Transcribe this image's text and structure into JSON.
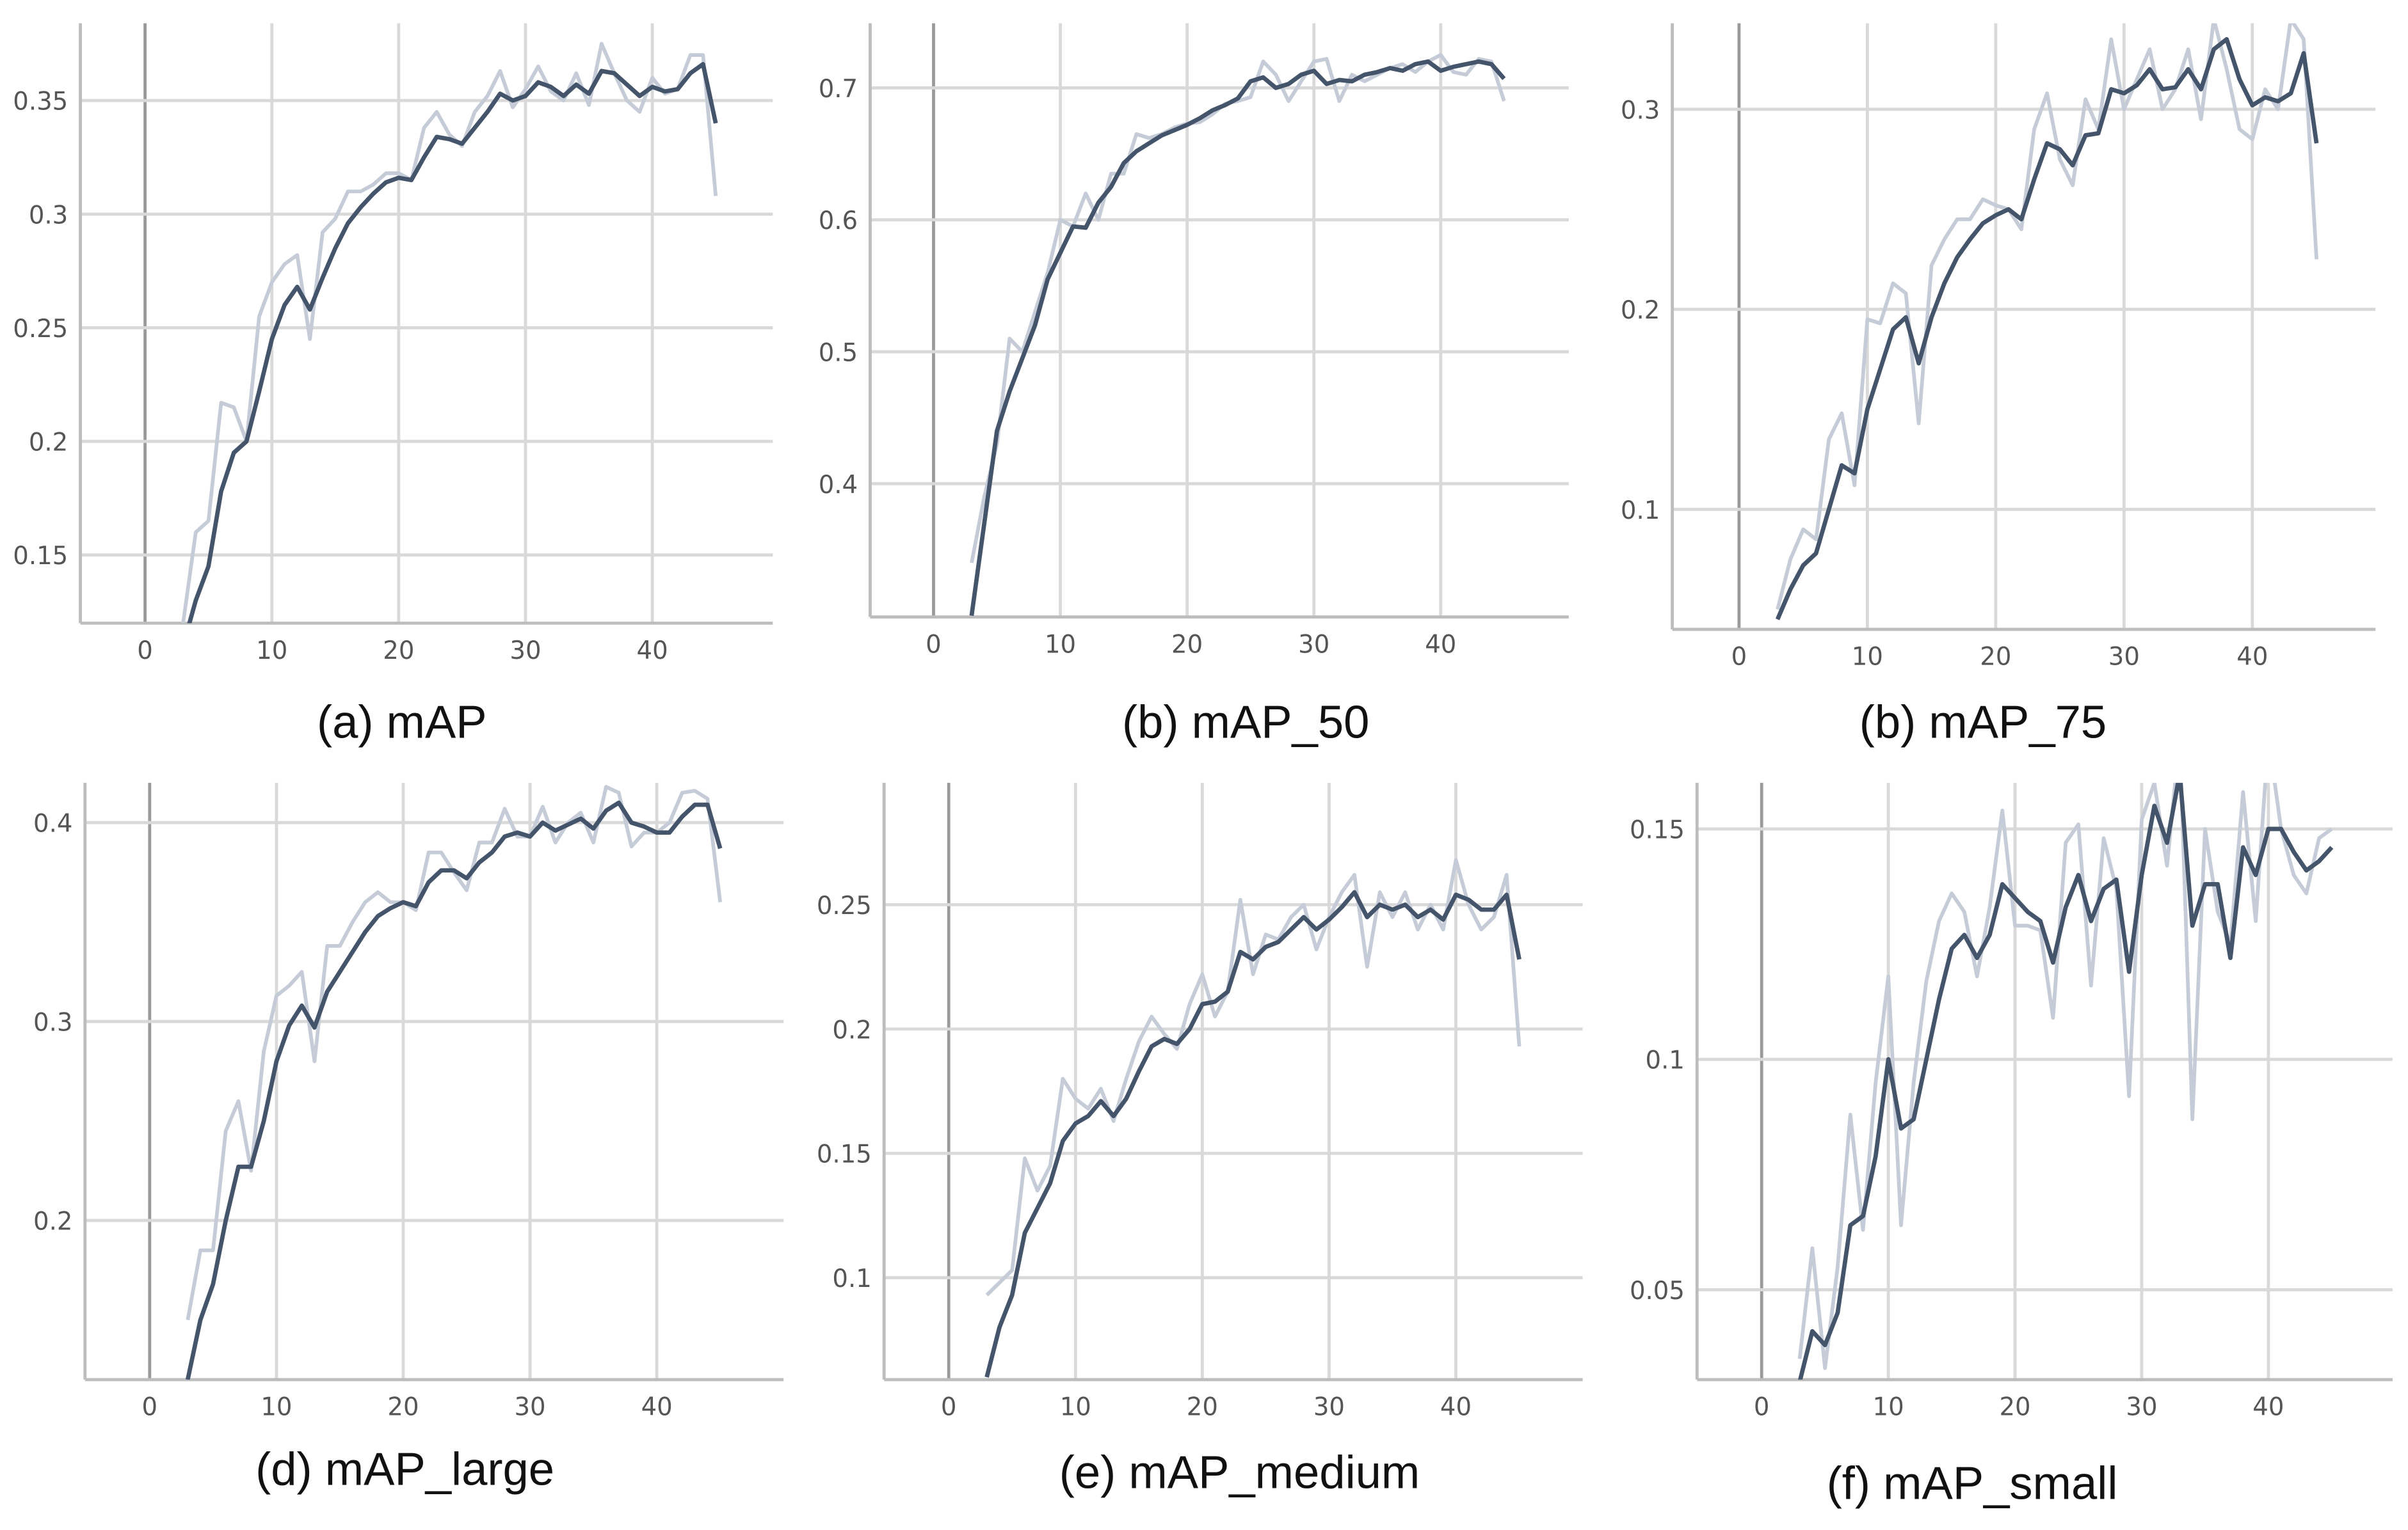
{
  "chart_data": [
    {
      "type": "line",
      "caption": "(a) mAP",
      "xlim": [
        -5.1,
        49.5
      ],
      "ylim": [
        0.12,
        0.384
      ],
      "xticks": [
        0,
        10,
        20,
        30,
        40
      ],
      "yticks": [
        0.15,
        0.2,
        0.25,
        0.3,
        0.35
      ],
      "grid": true,
      "x": [
        3,
        4,
        5,
        6,
        7,
        8,
        9,
        10,
        11,
        12,
        13,
        14,
        15,
        16,
        17,
        18,
        19,
        20,
        21,
        22,
        23,
        24,
        25,
        26,
        27,
        28,
        29,
        30,
        31,
        32,
        33,
        34,
        35,
        36,
        37,
        38,
        39,
        40,
        41,
        42,
        43,
        44,
        45
      ],
      "series": [
        {
          "color": "#c5ccd8",
          "values": [
            0.12,
            0.16,
            0.165,
            0.217,
            0.215,
            0.2,
            0.255,
            0.27,
            0.278,
            0.282,
            0.245,
            0.292,
            0.298,
            0.31,
            0.31,
            0.313,
            0.318,
            0.318,
            0.315,
            0.338,
            0.345,
            0.335,
            0.33,
            0.345,
            0.352,
            0.363,
            0.347,
            0.355,
            0.365,
            0.354,
            0.35,
            0.362,
            0.348,
            0.375,
            0.362,
            0.35,
            0.345,
            0.36,
            0.353,
            0.355,
            0.37,
            0.37,
            0.308
          ]
        },
        {
          "color": "#44546a",
          "values": [
            0.11,
            0.13,
            0.145,
            0.178,
            0.195,
            0.2,
            0.222,
            0.245,
            0.26,
            0.268,
            0.258,
            0.272,
            0.285,
            0.296,
            0.303,
            0.309,
            0.314,
            0.316,
            0.315,
            0.325,
            0.334,
            0.333,
            0.331,
            0.338,
            0.345,
            0.353,
            0.35,
            0.352,
            0.358,
            0.356,
            0.352,
            0.357,
            0.353,
            0.363,
            0.362,
            0.357,
            0.352,
            0.356,
            0.354,
            0.355,
            0.362,
            0.366,
            0.34
          ]
        }
      ]
    },
    {
      "type": "line",
      "caption": "(b) mAP_50",
      "xlim": [
        -5,
        50.1
      ],
      "ylim": [
        0.299,
        0.749
      ],
      "xticks": [
        0,
        10,
        20,
        30,
        40
      ],
      "yticks": [
        0.4,
        0.5,
        0.6,
        0.7
      ],
      "grid": true,
      "x": [
        3,
        4,
        5,
        6,
        7,
        8,
        9,
        10,
        11,
        12,
        13,
        14,
        15,
        16,
        17,
        18,
        19,
        20,
        21,
        22,
        23,
        24,
        25,
        26,
        27,
        28,
        29,
        30,
        31,
        32,
        33,
        34,
        35,
        36,
        37,
        38,
        39,
        40,
        41,
        42,
        43,
        44,
        45
      ],
      "series": [
        {
          "color": "#c5ccd8",
          "values": [
            0.34,
            0.39,
            0.43,
            0.51,
            0.5,
            0.53,
            0.56,
            0.6,
            0.595,
            0.62,
            0.6,
            0.635,
            0.635,
            0.665,
            0.662,
            0.665,
            0.67,
            0.673,
            0.674,
            0.68,
            0.688,
            0.69,
            0.693,
            0.72,
            0.71,
            0.69,
            0.705,
            0.72,
            0.722,
            0.69,
            0.71,
            0.705,
            0.71,
            0.715,
            0.718,
            0.712,
            0.72,
            0.725,
            0.712,
            0.71,
            0.722,
            0.72,
            0.69
          ]
        },
        {
          "color": "#44546a",
          "values": [
            0.3,
            0.37,
            0.44,
            0.47,
            0.495,
            0.52,
            0.555,
            0.575,
            0.595,
            0.594,
            0.613,
            0.625,
            0.643,
            0.652,
            0.658,
            0.664,
            0.668,
            0.672,
            0.677,
            0.683,
            0.687,
            0.692,
            0.705,
            0.708,
            0.7,
            0.703,
            0.71,
            0.713,
            0.703,
            0.706,
            0.705,
            0.71,
            0.712,
            0.715,
            0.713,
            0.718,
            0.72,
            0.713,
            0.716,
            0.718,
            0.72,
            0.718,
            0.707
          ]
        }
      ]
    },
    {
      "type": "line",
      "caption": "(b) mAP_75",
      "xlim": [
        -5.2,
        49.6
      ],
      "ylim": [
        0.04,
        0.343
      ],
      "xticks": [
        0,
        10,
        20,
        30,
        40
      ],
      "yticks": [
        0.1,
        0.2,
        0.3
      ],
      "grid": true,
      "x": [
        3,
        4,
        5,
        6,
        7,
        8,
        9,
        10,
        11,
        12,
        13,
        14,
        15,
        16,
        17,
        18,
        19,
        20,
        21,
        22,
        23,
        24,
        25,
        26,
        27,
        28,
        29,
        30,
        31,
        32,
        33,
        34,
        35,
        36,
        37,
        38,
        39,
        40,
        41,
        42,
        43,
        44,
        45
      ],
      "series": [
        {
          "color": "#c5ccd8",
          "values": [
            0.05,
            0.075,
            0.09,
            0.085,
            0.135,
            0.148,
            0.112,
            0.195,
            0.193,
            0.213,
            0.208,
            0.143,
            0.222,
            0.235,
            0.245,
            0.245,
            0.255,
            0.252,
            0.25,
            0.24,
            0.29,
            0.308,
            0.275,
            0.262,
            0.305,
            0.29,
            0.335,
            0.3,
            0.315,
            0.33,
            0.3,
            0.31,
            0.33,
            0.295,
            0.345,
            0.32,
            0.29,
            0.285,
            0.31,
            0.3,
            0.345,
            0.335,
            0.225
          ]
        },
        {
          "color": "#44546a",
          "values": [
            0.045,
            0.06,
            0.072,
            0.078,
            0.1,
            0.122,
            0.118,
            0.15,
            0.17,
            0.19,
            0.196,
            0.173,
            0.196,
            0.213,
            0.226,
            0.235,
            0.243,
            0.247,
            0.25,
            0.245,
            0.265,
            0.283,
            0.28,
            0.272,
            0.287,
            0.288,
            0.31,
            0.308,
            0.312,
            0.32,
            0.31,
            0.311,
            0.32,
            0.31,
            0.33,
            0.335,
            0.315,
            0.302,
            0.306,
            0.304,
            0.308,
            0.328,
            0.283
          ]
        }
      ]
    },
    {
      "type": "line",
      "caption": "(d) mAP_large",
      "xlim": [
        -5.1,
        50
      ],
      "ylim": [
        0.12,
        0.42
      ],
      "xticks": [
        0,
        10,
        20,
        30,
        40
      ],
      "yticks": [
        0.2,
        0.3,
        0.4
      ],
      "grid": true,
      "x": [
        3,
        4,
        5,
        6,
        7,
        8,
        9,
        10,
        11,
        12,
        13,
        14,
        15,
        16,
        17,
        18,
        19,
        20,
        21,
        22,
        23,
        24,
        25,
        26,
        27,
        28,
        29,
        30,
        31,
        32,
        33,
        34,
        35,
        36,
        37,
        38,
        39,
        40,
        41,
        42,
        43,
        44,
        45
      ],
      "series": [
        {
          "color": "#c5ccd8",
          "values": [
            0.15,
            0.185,
            0.185,
            0.245,
            0.26,
            0.225,
            0.285,
            0.313,
            0.318,
            0.325,
            0.28,
            0.338,
            0.338,
            0.35,
            0.36,
            0.365,
            0.36,
            0.36,
            0.356,
            0.385,
            0.385,
            0.375,
            0.366,
            0.39,
            0.39,
            0.407,
            0.393,
            0.393,
            0.408,
            0.39,
            0.4,
            0.405,
            0.39,
            0.418,
            0.415,
            0.388,
            0.395,
            0.395,
            0.4,
            0.415,
            0.416,
            0.412,
            0.36
          ]
        },
        {
          "color": "#44546a",
          "values": [
            0.12,
            0.15,
            0.168,
            0.2,
            0.227,
            0.227,
            0.25,
            0.28,
            0.298,
            0.308,
            0.297,
            0.315,
            0.325,
            0.335,
            0.345,
            0.353,
            0.357,
            0.36,
            0.358,
            0.37,
            0.376,
            0.376,
            0.372,
            0.38,
            0.385,
            0.393,
            0.395,
            0.393,
            0.4,
            0.396,
            0.399,
            0.402,
            0.397,
            0.406,
            0.41,
            0.4,
            0.398,
            0.395,
            0.395,
            0.403,
            0.409,
            0.409,
            0.387
          ]
        }
      ]
    },
    {
      "type": "line",
      "caption": "(e) mAP_medium",
      "xlim": [
        -5.1,
        50
      ],
      "ylim": [
        0.059,
        0.299
      ],
      "xticks": [
        0,
        10,
        20,
        30,
        40
      ],
      "yticks": [
        0.1,
        0.15,
        0.2,
        0.25
      ],
      "grid": true,
      "x": [
        3,
        4,
        5,
        6,
        7,
        8,
        9,
        10,
        11,
        12,
        13,
        14,
        15,
        16,
        17,
        18,
        19,
        20,
        21,
        22,
        23,
        24,
        25,
        26,
        27,
        28,
        29,
        30,
        31,
        32,
        33,
        34,
        35,
        36,
        37,
        38,
        39,
        40,
        41,
        42,
        43,
        44,
        45
      ],
      "series": [
        {
          "color": "#c5ccd8",
          "values": [
            0.093,
            0.098,
            0.103,
            0.148,
            0.135,
            0.145,
            0.18,
            0.172,
            0.168,
            0.176,
            0.163,
            0.18,
            0.195,
            0.205,
            0.198,
            0.192,
            0.21,
            0.222,
            0.205,
            0.215,
            0.252,
            0.222,
            0.238,
            0.236,
            0.245,
            0.25,
            0.232,
            0.245,
            0.255,
            0.262,
            0.225,
            0.255,
            0.245,
            0.255,
            0.24,
            0.25,
            0.24,
            0.268,
            0.25,
            0.24,
            0.245,
            0.262,
            0.193
          ]
        },
        {
          "color": "#44546a",
          "values": [
            0.06,
            0.08,
            0.093,
            0.118,
            0.128,
            0.138,
            0.155,
            0.162,
            0.165,
            0.171,
            0.165,
            0.172,
            0.183,
            0.193,
            0.196,
            0.194,
            0.2,
            0.21,
            0.211,
            0.215,
            0.231,
            0.228,
            0.233,
            0.235,
            0.24,
            0.245,
            0.24,
            0.244,
            0.249,
            0.255,
            0.245,
            0.25,
            0.248,
            0.25,
            0.245,
            0.248,
            0.244,
            0.254,
            0.252,
            0.248,
            0.248,
            0.254,
            0.228
          ]
        }
      ]
    },
    {
      "type": "line",
      "caption": "(f) mAP_small",
      "xlim": [
        -5.1,
        49.8
      ],
      "ylim": [
        0.0305,
        0.16
      ],
      "xticks": [
        0,
        10,
        20,
        30,
        40
      ],
      "yticks": [
        0.05,
        0.1,
        0.15
      ],
      "grid": true,
      "x": [
        3,
        4,
        5,
        6,
        7,
        8,
        9,
        10,
        11,
        12,
        13,
        14,
        15,
        16,
        17,
        18,
        19,
        20,
        21,
        22,
        23,
        24,
        25,
        26,
        27,
        28,
        29,
        30,
        31,
        32,
        33,
        34,
        35,
        36,
        37,
        38,
        39,
        40,
        41,
        42,
        43,
        44,
        45
      ],
      "series": [
        {
          "color": "#c5ccd8",
          "values": [
            0.035,
            0.059,
            0.033,
            0.055,
            0.088,
            0.063,
            0.095,
            0.118,
            0.064,
            0.095,
            0.117,
            0.13,
            0.136,
            0.132,
            0.118,
            0.133,
            0.154,
            0.129,
            0.129,
            0.128,
            0.109,
            0.147,
            0.151,
            0.116,
            0.148,
            0.137,
            0.092,
            0.152,
            0.16,
            0.142,
            0.17,
            0.087,
            0.15,
            0.132,
            0.125,
            0.158,
            0.13,
            0.17,
            0.15,
            0.14,
            0.136,
            0.148,
            0.15
          ]
        },
        {
          "color": "#44546a",
          "values": [
            0.03,
            0.041,
            0.038,
            0.045,
            0.064,
            0.066,
            0.079,
            0.1,
            0.085,
            0.087,
            0.1,
            0.113,
            0.124,
            0.127,
            0.122,
            0.127,
            0.138,
            0.135,
            0.132,
            0.13,
            0.121,
            0.133,
            0.14,
            0.13,
            0.137,
            0.139,
            0.119,
            0.14,
            0.155,
            0.147,
            0.162,
            0.129,
            0.138,
            0.138,
            0.122,
            0.146,
            0.14,
            0.15,
            0.15,
            0.145,
            0.141,
            0.143,
            0.146
          ]
        }
      ]
    }
  ]
}
